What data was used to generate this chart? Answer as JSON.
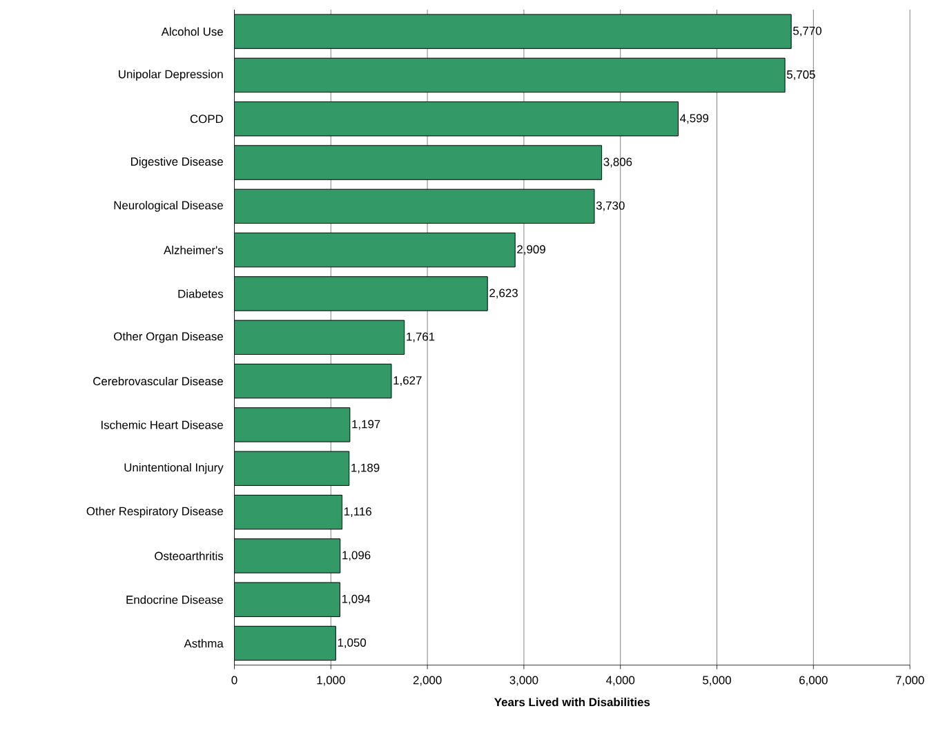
{
  "chart_data": {
    "type": "bar",
    "orientation": "horizontal",
    "xlabel": "Years Lived with Disabilities",
    "categories": [
      "Alcohol Use",
      "Unipolar Depression",
      "COPD",
      "Digestive Disease",
      "Neurological Disease",
      "Alzheimer's",
      "Diabetes",
      "Other Organ Disease",
      "Cerebrovascular Disease",
      "Ischemic Heart Disease",
      "Unintentional Injury",
      "Other Respiratory Disease",
      "Osteoarthritis",
      "Endocrine Disease",
      "Asthma"
    ],
    "values": [
      5770,
      5705,
      4599,
      3806,
      3730,
      2909,
      2623,
      1761,
      1627,
      1197,
      1189,
      1116,
      1096,
      1094,
      1050
    ],
    "value_labels": [
      "5,770",
      "5,705",
      "4,599",
      "3,806",
      "3,730",
      "2,909",
      "2,623",
      "1,761",
      "1,627",
      "1,197",
      "1,189",
      "1,116",
      "1,096",
      "1,094",
      "1,050"
    ],
    "color": "#339966",
    "xlim": [
      0,
      7000
    ],
    "xticks": [
      0,
      {
        "value": 1000,
        "label": "1,000"
      },
      {
        "value": 2000,
        "label": "2,000"
      },
      {
        "value": 3000,
        "label": "3,000"
      },
      {
        "value": 4000,
        "label": "4,000"
      },
      {
        "value": 5000,
        "label": "5,000"
      },
      {
        "value": 6000,
        "label": "6,000"
      },
      {
        "value": 7000,
        "label": "7,000"
      }
    ],
    "grid": "x"
  }
}
